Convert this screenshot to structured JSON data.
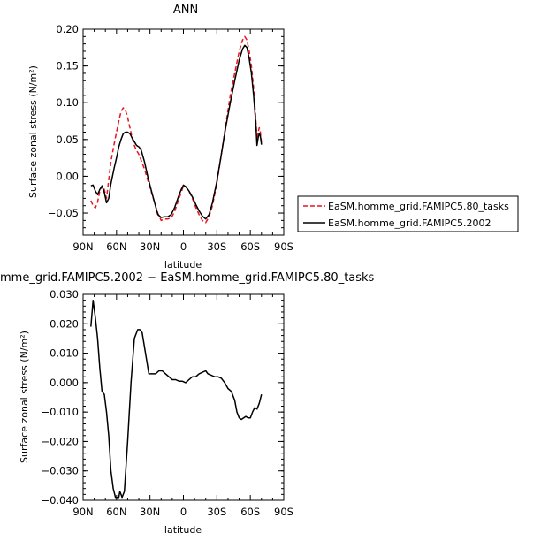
{
  "chart_data": [
    {
      "type": "line",
      "title": "ANN",
      "xlabel": "latitude",
      "ylabel": "Surface zonal stress (N/m²)",
      "xlim": [
        90,
        -90
      ],
      "ylim": [
        -0.08,
        0.2
      ],
      "xticks": [
        90,
        60,
        30,
        0,
        -30,
        -60,
        -90
      ],
      "xtick_labels": [
        "90N",
        "60N",
        "30N",
        "0",
        "30S",
        "60S",
        "90S"
      ],
      "yticks": [
        -0.05,
        0.0,
        0.05,
        0.1,
        0.15,
        0.2
      ],
      "ytick_labels": [
        "−0.05",
        "0.00",
        "0.05",
        "0.10",
        "0.15",
        "0.20"
      ],
      "legend_position": "right",
      "series": [
        {
          "name": "EaSM.homme_grid.FAMIPC5.80_tasks",
          "color": "#e8141e",
          "dash": "dashed",
          "x": [
            83,
            81,
            79,
            77,
            75,
            73,
            71,
            69,
            67,
            65,
            62,
            60,
            58,
            56,
            54,
            52,
            50,
            48,
            46,
            44,
            42,
            40,
            38,
            35,
            32,
            29,
            26,
            23,
            20,
            17,
            14,
            11,
            8,
            5,
            2,
            0,
            -2,
            -5,
            -8,
            -11,
            -14,
            -17,
            -20,
            -23,
            -26,
            -30,
            -34,
            -38,
            -42,
            -46,
            -50,
            -53,
            -55,
            -57,
            -59,
            -61,
            -63,
            -65,
            -66,
            -67,
            -68,
            -69,
            -70
          ],
          "y": [
            -0.033,
            -0.04,
            -0.043,
            -0.035,
            -0.02,
            -0.013,
            -0.018,
            -0.03,
            -0.005,
            0.02,
            0.045,
            0.06,
            0.075,
            0.088,
            0.093,
            0.09,
            0.08,
            0.066,
            0.052,
            0.042,
            0.035,
            0.03,
            0.022,
            0.01,
            -0.005,
            -0.02,
            -0.035,
            -0.05,
            -0.06,
            -0.058,
            -0.058,
            -0.057,
            -0.048,
            -0.035,
            -0.022,
            -0.013,
            -0.014,
            -0.02,
            -0.03,
            -0.042,
            -0.052,
            -0.06,
            -0.063,
            -0.055,
            -0.04,
            -0.01,
            0.03,
            0.07,
            0.11,
            0.14,
            0.17,
            0.185,
            0.19,
            0.185,
            0.17,
            0.15,
            0.12,
            0.075,
            0.05,
            0.06,
            0.066,
            0.06,
            0.045
          ]
        },
        {
          "name": "EaSM.homme_grid.FAMIPC5.2002",
          "color": "#000000",
          "dash": "solid",
          "x": [
            83,
            81,
            79,
            77,
            75,
            73,
            71,
            69,
            67,
            65,
            62,
            60,
            58,
            56,
            54,
            52,
            50,
            48,
            46,
            44,
            42,
            40,
            38,
            35,
            32,
            29,
            26,
            23,
            20,
            17,
            14,
            11,
            8,
            5,
            2,
            0,
            -2,
            -5,
            -8,
            -11,
            -14,
            -17,
            -20,
            -23,
            -26,
            -30,
            -34,
            -38,
            -42,
            -46,
            -50,
            -53,
            -55,
            -57,
            -59,
            -61,
            -63,
            -65,
            -66,
            -67,
            -68,
            -69,
            -70
          ],
          "y": [
            -0.013,
            -0.012,
            -0.02,
            -0.025,
            -0.018,
            -0.013,
            -0.022,
            -0.036,
            -0.03,
            -0.01,
            0.012,
            0.025,
            0.04,
            0.05,
            0.058,
            0.06,
            0.06,
            0.058,
            0.052,
            0.047,
            0.042,
            0.04,
            0.036,
            0.02,
            0.0,
            -0.018,
            -0.035,
            -0.052,
            -0.056,
            -0.055,
            -0.055,
            -0.052,
            -0.043,
            -0.03,
            -0.018,
            -0.012,
            -0.014,
            -0.02,
            -0.028,
            -0.038,
            -0.047,
            -0.054,
            -0.058,
            -0.052,
            -0.036,
            -0.007,
            0.03,
            0.067,
            0.1,
            0.13,
            0.158,
            0.173,
            0.178,
            0.175,
            0.16,
            0.14,
            0.11,
            0.07,
            0.042,
            0.052,
            0.058,
            0.055,
            0.043
          ]
        }
      ]
    },
    {
      "type": "line",
      "title": "mme_grid.FAMIPC5.2002 − EaSM.homme_grid.FAMIPC5.80_tasks",
      "xlabel": "latitude",
      "ylabel": "Surface zonal stress (N/m²)",
      "xlim": [
        90,
        -90
      ],
      "ylim": [
        -0.04,
        0.03
      ],
      "xticks": [
        90,
        60,
        30,
        0,
        -30,
        -60,
        -90
      ],
      "xtick_labels": [
        "90N",
        "60N",
        "30N",
        "0",
        "30S",
        "60S",
        "90S"
      ],
      "yticks": [
        -0.04,
        -0.03,
        -0.02,
        -0.01,
        0.0,
        0.01,
        0.02,
        0.03
      ],
      "ytick_labels": [
        "−0.040",
        "−0.030",
        "−0.020",
        "−0.010",
        "0.000",
        "0.010",
        "0.020",
        "0.030"
      ],
      "series": [
        {
          "name": "",
          "color": "#000000",
          "dash": "solid",
          "x": [
            83,
            81,
            79,
            77,
            75,
            73,
            71,
            69,
            67,
            65,
            63,
            61,
            60,
            59,
            58,
            57,
            56,
            55,
            53,
            50,
            47,
            44,
            41,
            39,
            37,
            34,
            31,
            28,
            25,
            22,
            19,
            16,
            13,
            10,
            7,
            4,
            1,
            -2,
            -5,
            -8,
            -11,
            -14,
            -17,
            -20,
            -22,
            -25,
            -28,
            -31,
            -34,
            -37,
            -40,
            -43,
            -46,
            -48,
            -50,
            -52,
            -54,
            -56,
            -58,
            -60,
            -62,
            -64,
            -66,
            -68,
            -70
          ],
          "y": [
            0.019,
            0.028,
            0.022,
            0.015,
            0.005,
            -0.003,
            -0.004,
            -0.01,
            -0.018,
            -0.03,
            -0.036,
            -0.039,
            -0.039,
            -0.039,
            -0.039,
            -0.037,
            -0.038,
            -0.039,
            -0.037,
            -0.02,
            0.0,
            0.015,
            0.018,
            0.018,
            0.017,
            0.01,
            0.003,
            0.003,
            0.003,
            0.004,
            0.004,
            0.003,
            0.002,
            0.001,
            0.001,
            0.0005,
            0.0005,
            0.0,
            0.001,
            0.002,
            0.002,
            0.003,
            0.0035,
            0.004,
            0.003,
            0.0025,
            0.002,
            0.002,
            0.0015,
            0.0,
            -0.002,
            -0.003,
            -0.006,
            -0.01,
            -0.012,
            -0.0125,
            -0.012,
            -0.0115,
            -0.012,
            -0.012,
            -0.01,
            -0.0085,
            -0.009,
            -0.007,
            -0.004
          ]
        }
      ]
    }
  ]
}
